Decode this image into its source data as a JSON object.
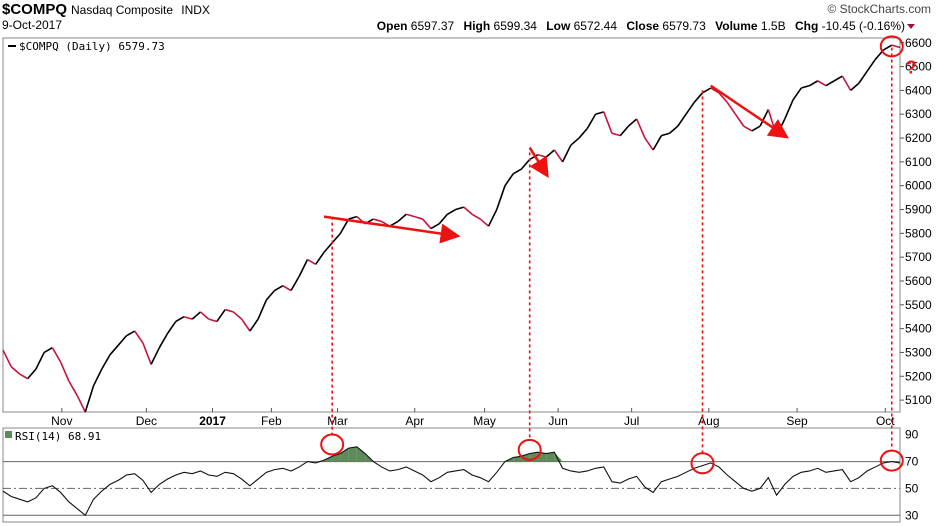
{
  "header": {
    "symbol": "$COMPQ",
    "name": "Nasdaq Composite",
    "exchange": "INDX",
    "date": "9-Oct-2017",
    "brand": "© StockCharts.com",
    "open_label": "Open",
    "open": "6597.37",
    "high_label": "High",
    "high": "6599.34",
    "low_label": "Low",
    "low": "6572.44",
    "close_label": "Close",
    "close": "6579.73",
    "volume_label": "Volume",
    "volume": "1.5B",
    "chg_label": "Chg",
    "chg": "-10.45 (-0.16%)"
  },
  "colors": {
    "price": "#000000",
    "down": "#c8143c",
    "annot": "#ee1111",
    "rsi_fill": "#5f8a5a"
  },
  "chart_data": [
    {
      "type": "line",
      "legend": "$COMPQ (Daily) 6579.73",
      "ylim": [
        5050,
        6620
      ],
      "yticks": [
        5100,
        5200,
        5300,
        5400,
        5500,
        5600,
        5700,
        5800,
        5900,
        6000,
        6100,
        6200,
        6300,
        6400,
        6500,
        6600
      ],
      "month_labels": [
        "Nov",
        "Dec",
        "2017",
        "Feb",
        "Mar",
        "Apr",
        "May",
        "Jun",
        "Jul",
        "Aug",
        "Sep",
        "Oct"
      ],
      "month_positions": [
        0.08,
        0.195,
        0.285,
        0.365,
        0.455,
        0.56,
        0.655,
        0.755,
        0.855,
        0.96,
        1.08,
        1.2
      ],
      "series": [
        {
          "values": [
            5310,
            5240,
            5210,
            5190,
            5230,
            5300,
            5320,
            5260,
            5180,
            5120,
            5050,
            5160,
            5230,
            5290,
            5330,
            5370,
            5390,
            5340,
            5250,
            5320,
            5380,
            5430,
            5450,
            5440,
            5470,
            5440,
            5430,
            5480,
            5470,
            5440,
            5390,
            5440,
            5520,
            5560,
            5580,
            5560,
            5620,
            5690,
            5670,
            5720,
            5760,
            5800,
            5860,
            5870,
            5840,
            5860,
            5850,
            5830,
            5850,
            5880,
            5870,
            5860,
            5820,
            5840,
            5880,
            5900,
            5910,
            5880,
            5860,
            5830,
            5900,
            6000,
            6050,
            6070,
            6110,
            6130,
            6120,
            6150,
            6100,
            6170,
            6200,
            6240,
            6300,
            6310,
            6220,
            6210,
            6250,
            6280,
            6200,
            6150,
            6210,
            6220,
            6250,
            6300,
            6350,
            6390,
            6410,
            6390,
            6350,
            6300,
            6250,
            6230,
            6250,
            6320,
            6210,
            6280,
            6360,
            6410,
            6420,
            6440,
            6420,
            6440,
            6460,
            6400,
            6430,
            6480,
            6530,
            6570,
            6590,
            6580
          ]
        }
      ]
    },
    {
      "type": "line",
      "legend": "RSI(14) 68.91",
      "ylim": [
        25,
        95
      ],
      "yticks": [
        30,
        50,
        70,
        90
      ],
      "reference_lines": [
        70,
        50,
        30
      ],
      "series": [
        {
          "values": [
            48,
            44,
            42,
            40,
            43,
            50,
            52,
            47,
            40,
            35,
            30,
            42,
            48,
            53,
            56,
            60,
            61,
            56,
            47,
            53,
            57,
            60,
            62,
            61,
            63,
            60,
            59,
            62,
            61,
            57,
            52,
            57,
            62,
            64,
            65,
            63,
            66,
            70,
            69,
            71,
            74,
            76,
            80,
            81,
            76,
            70,
            66,
            63,
            64,
            66,
            63,
            60,
            55,
            58,
            62,
            63,
            64,
            60,
            58,
            55,
            62,
            70,
            73,
            74,
            76,
            77,
            76,
            77,
            65,
            63,
            62,
            63,
            65,
            66,
            55,
            54,
            57,
            59,
            51,
            47,
            55,
            57,
            59,
            62,
            65,
            67,
            69,
            66,
            60,
            55,
            50,
            48,
            50,
            58,
            45,
            53,
            59,
            62,
            63,
            65,
            62,
            63,
            64,
            55,
            58,
            63,
            66,
            69,
            70,
            69
          ]
        }
      ]
    }
  ],
  "annotations": {
    "question_mark": "?"
  }
}
